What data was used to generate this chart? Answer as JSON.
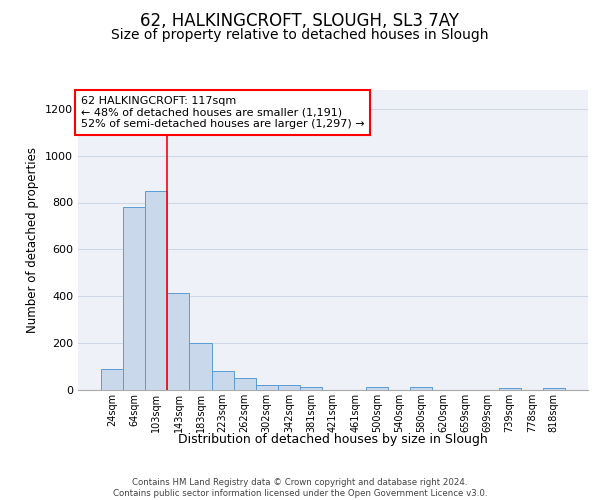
{
  "title1": "62, HALKINGCROFT, SLOUGH, SL3 7AY",
  "title2": "Size of property relative to detached houses in Slough",
  "xlabel": "Distribution of detached houses by size in Slough",
  "ylabel": "Number of detached properties",
  "annotation_line1": "62 HALKINGCROFT: 117sqm",
  "annotation_line2": "← 48% of detached houses are smaller (1,191)",
  "annotation_line3": "52% of semi-detached houses are larger (1,297) →",
  "bar_labels": [
    "24sqm",
    "64sqm",
    "103sqm",
    "143sqm",
    "183sqm",
    "223sqm",
    "262sqm",
    "302sqm",
    "342sqm",
    "381sqm",
    "421sqm",
    "461sqm",
    "500sqm",
    "540sqm",
    "580sqm",
    "620sqm",
    "659sqm",
    "699sqm",
    "739sqm",
    "778sqm",
    "818sqm"
  ],
  "bar_values": [
    90,
    780,
    850,
    415,
    200,
    80,
    50,
    20,
    20,
    12,
    0,
    0,
    12,
    0,
    12,
    0,
    0,
    0,
    10,
    0,
    10
  ],
  "bar_color": "#c9d9eb",
  "bar_edge_color": "#5b9bd5",
  "grid_color": "#d0d8e8",
  "background_color": "#eef2f8",
  "vline_color": "red",
  "annotation_box_color": "white",
  "annotation_box_edge": "red",
  "ylim": [
    0,
    1280
  ],
  "yticks": [
    0,
    200,
    400,
    600,
    800,
    1000,
    1200
  ],
  "footer": "Contains HM Land Registry data © Crown copyright and database right 2024.\nContains public sector information licensed under the Open Government Licence v3.0.",
  "title1_fontsize": 12,
  "title2_fontsize": 10,
  "xlabel_fontsize": 9,
  "ylabel_fontsize": 8.5,
  "annotation_fontsize": 8,
  "tick_fontsize": 8,
  "xtick_fontsize": 7
}
